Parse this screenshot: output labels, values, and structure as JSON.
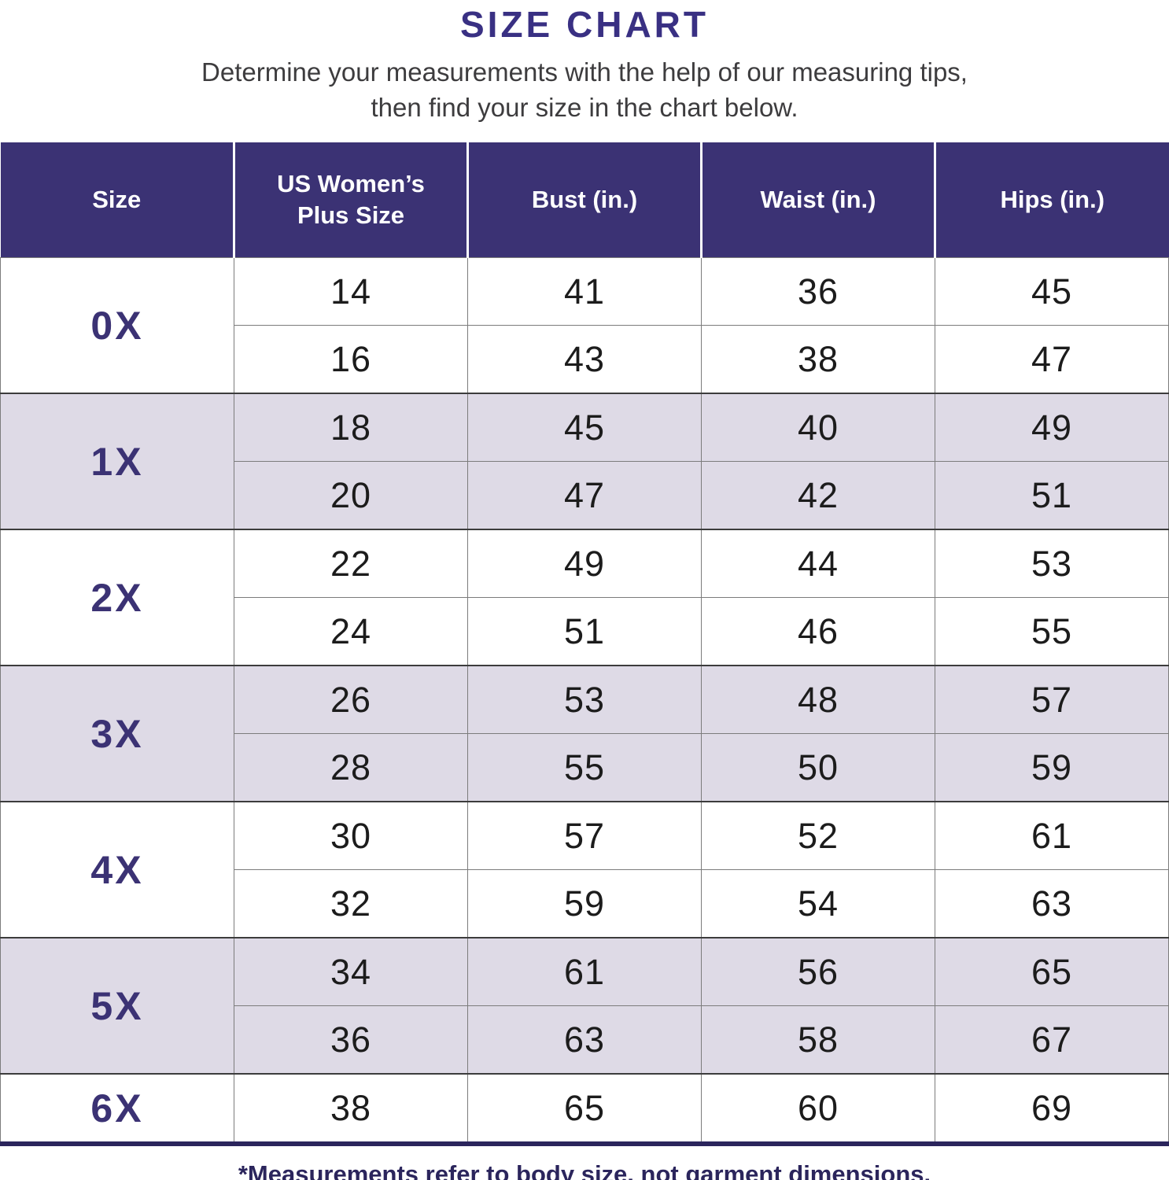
{
  "page": {
    "title": "SIZE CHART",
    "subtitle_line1": "Determine your measurements with the help of our measuring tips,",
    "subtitle_line2": "then find your size in the chart below.",
    "footnote": "*Measurements refer to body size, not garment dimensions."
  },
  "colors": {
    "header_bg": "#3b3274",
    "title_text": "#393083",
    "size_label_text": "#3b3274",
    "row_alt_bg": "#dedae6",
    "row_bg": "#ffffff",
    "body_text": "#1c1c1c",
    "grid_line": "#7c7c7c",
    "group_divider": "#3c3c3c",
    "bottom_border": "#2b255c",
    "footnote_text": "#2b255c"
  },
  "chart_data": {
    "type": "table",
    "title": "SIZE CHART",
    "columns": [
      "Size",
      "US Women’s Plus Size",
      "Bust (in.)",
      "Waist (in.)",
      "Hips (in.)"
    ],
    "groups": [
      {
        "size": "0X",
        "rows": [
          [
            14,
            41,
            36,
            45
          ],
          [
            16,
            43,
            38,
            47
          ]
        ]
      },
      {
        "size": "1X",
        "rows": [
          [
            18,
            45,
            40,
            49
          ],
          [
            20,
            47,
            42,
            51
          ]
        ]
      },
      {
        "size": "2X",
        "rows": [
          [
            22,
            49,
            44,
            53
          ],
          [
            24,
            51,
            46,
            55
          ]
        ]
      },
      {
        "size": "3X",
        "rows": [
          [
            26,
            53,
            48,
            57
          ],
          [
            28,
            55,
            50,
            59
          ]
        ]
      },
      {
        "size": "4X",
        "rows": [
          [
            30,
            57,
            52,
            61
          ],
          [
            32,
            59,
            54,
            63
          ]
        ]
      },
      {
        "size": "5X",
        "rows": [
          [
            34,
            61,
            56,
            65
          ],
          [
            36,
            63,
            58,
            67
          ]
        ]
      },
      {
        "size": "6X",
        "rows": [
          [
            38,
            65,
            60,
            69
          ]
        ]
      }
    ]
  }
}
